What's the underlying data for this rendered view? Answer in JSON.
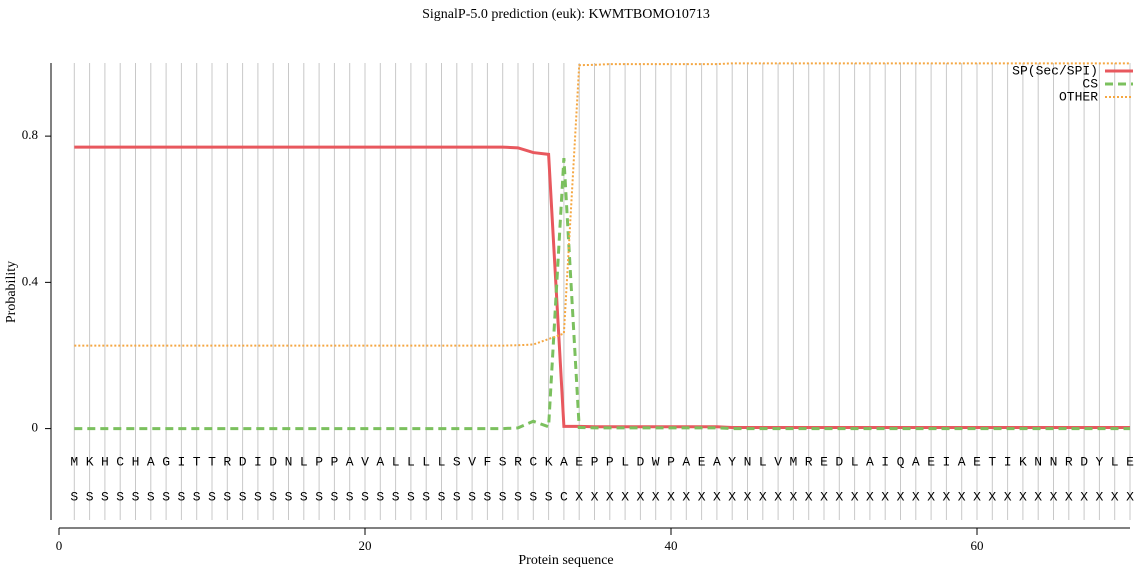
{
  "chart_data": {
    "type": "line",
    "title": "SignalP-5.0 prediction (euk):  KWMTBOMO10713",
    "x_label": "Protein sequence",
    "y_label": "Probability",
    "x": [
      1,
      2,
      3,
      4,
      5,
      6,
      7,
      8,
      9,
      10,
      11,
      12,
      13,
      14,
      15,
      16,
      17,
      18,
      19,
      20,
      21,
      22,
      23,
      24,
      25,
      26,
      27,
      28,
      29,
      30,
      31,
      32,
      33,
      34,
      35,
      36,
      37,
      38,
      39,
      40,
      41,
      42,
      43,
      44,
      45,
      46,
      47,
      48,
      49,
      50,
      51,
      52,
      53,
      54,
      55,
      56,
      57,
      58,
      59,
      60,
      61,
      62,
      63,
      64,
      65,
      66,
      67,
      68,
      69,
      70
    ],
    "sequence": [
      "M",
      "K",
      "H",
      "C",
      "H",
      "A",
      "G",
      "I",
      "T",
      "T",
      "R",
      "D",
      "I",
      "D",
      "N",
      "L",
      "P",
      "P",
      "A",
      "V",
      "A",
      "L",
      "L",
      "L",
      "L",
      "S",
      "V",
      "F",
      "S",
      "R",
      "C",
      "K",
      "A",
      "E",
      "P",
      "P",
      "L",
      "D",
      "W",
      "P",
      "A",
      "E",
      "A",
      "Y",
      "N",
      "L",
      "V",
      "M",
      "R",
      "E",
      "D",
      "L",
      "A",
      "I",
      "Q",
      "A",
      "E",
      "I",
      "A",
      "E",
      "T",
      "I",
      "K",
      "N",
      "N",
      "R",
      "D",
      "Y",
      "L",
      "E"
    ],
    "predicted_labels": [
      "S",
      "S",
      "S",
      "S",
      "S",
      "S",
      "S",
      "S",
      "S",
      "S",
      "S",
      "S",
      "S",
      "S",
      "S",
      "S",
      "S",
      "S",
      "S",
      "S",
      "S",
      "S",
      "S",
      "S",
      "S",
      "S",
      "S",
      "S",
      "S",
      "S",
      "S",
      "S",
      "C",
      "X",
      "X",
      "X",
      "X",
      "X",
      "X",
      "X",
      "X",
      "X",
      "X",
      "X",
      "X",
      "X",
      "X",
      "X",
      "X",
      "X",
      "X",
      "X",
      "X",
      "X",
      "X",
      "X",
      "X",
      "X",
      "X",
      "X",
      "X",
      "X",
      "X",
      "X",
      "X",
      "X",
      "X",
      "X",
      "X",
      "X"
    ],
    "series": [
      {
        "name": "SP(Sec/SPI)",
        "color": "#e8585e",
        "style": "solid",
        "values": [
          0.77,
          0.77,
          0.77,
          0.77,
          0.77,
          0.77,
          0.77,
          0.77,
          0.77,
          0.77,
          0.77,
          0.77,
          0.77,
          0.77,
          0.77,
          0.77,
          0.77,
          0.77,
          0.77,
          0.77,
          0.77,
          0.77,
          0.77,
          0.77,
          0.77,
          0.77,
          0.77,
          0.77,
          0.77,
          0.768,
          0.755,
          0.75,
          0.006,
          0.006,
          0.005,
          0.005,
          0.005,
          0.005,
          0.005,
          0.005,
          0.005,
          0.005,
          0.005,
          0.003,
          0.003,
          0.003,
          0.003,
          0.003,
          0.003,
          0.003,
          0.003,
          0.003,
          0.003,
          0.003,
          0.003,
          0.003,
          0.003,
          0.003,
          0.003,
          0.003,
          0.003,
          0.003,
          0.003,
          0.003,
          0.003,
          0.003,
          0.003,
          0.003,
          0.003,
          0.003
        ]
      },
      {
        "name": "CS",
        "color": "#7bc05e",
        "style": "dashed",
        "values": [
          0,
          0,
          0,
          0,
          0,
          0,
          0,
          0,
          0,
          0,
          0,
          0,
          0,
          0,
          0,
          0,
          0,
          0,
          0,
          0,
          0,
          0,
          0,
          0,
          0,
          0,
          0,
          0,
          0,
          0.002,
          0.02,
          0.005,
          0.74,
          0.003,
          0.002,
          0.002,
          0.002,
          0.002,
          0.002,
          0.002,
          0.002,
          0.002,
          0.002,
          0,
          0,
          0,
          0,
          0,
          0,
          0,
          0,
          0,
          0,
          0,
          0,
          0,
          0,
          0,
          0,
          0,
          0,
          0,
          0,
          0,
          0,
          0,
          0,
          0,
          0,
          0
        ]
      },
      {
        "name": "OTHER",
        "color": "#f5a742",
        "style": "dotted",
        "values": [
          0.227,
          0.227,
          0.227,
          0.227,
          0.227,
          0.227,
          0.227,
          0.227,
          0.227,
          0.227,
          0.227,
          0.227,
          0.227,
          0.227,
          0.227,
          0.227,
          0.227,
          0.227,
          0.227,
          0.227,
          0.227,
          0.227,
          0.227,
          0.227,
          0.227,
          0.227,
          0.227,
          0.227,
          0.227,
          0.228,
          0.23,
          0.245,
          0.26,
          0.994,
          0.995,
          0.997,
          0.997,
          0.997,
          0.997,
          0.997,
          0.997,
          0.997,
          0.997,
          0.999,
          0.999,
          0.999,
          0.999,
          0.999,
          0.999,
          0.999,
          0.999,
          0.999,
          0.999,
          0.999,
          0.999,
          0.999,
          0.999,
          0.999,
          0.999,
          0.999,
          0.999,
          0.999,
          0.999,
          0.999,
          0.999,
          0.999,
          0.999,
          0.999,
          0.999,
          0.999
        ]
      }
    ],
    "xlim": [
      0,
      70
    ],
    "xticks": [
      0,
      20,
      40,
      60
    ],
    "ylim": [
      -0.25,
      1.0
    ],
    "yticks": [
      0,
      0.4,
      0.8
    ],
    "grid": true,
    "legend": "top-right"
  }
}
